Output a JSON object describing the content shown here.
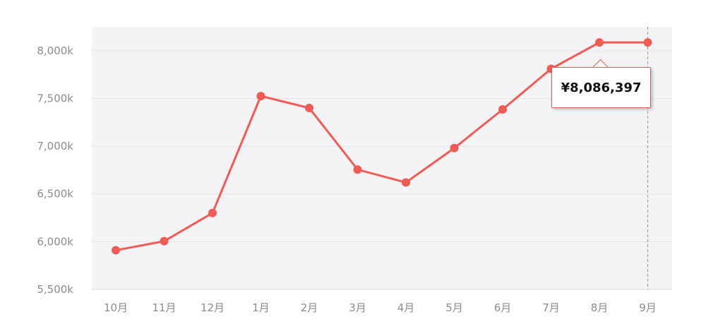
{
  "chart_data": {
    "type": "line",
    "categories": [
      "10月",
      "11月",
      "12月",
      "1月",
      "2月",
      "3月",
      "4月",
      "5月",
      "6月",
      "7月",
      "8月",
      "9月"
    ],
    "values": [
      5910,
      6005,
      6300,
      7525,
      7400,
      6755,
      6620,
      6980,
      7385,
      7810,
      8086,
      8086
    ],
    "y_ticks": [
      "5,500k",
      "6,000k",
      "6,500k",
      "7,000k",
      "7,500k",
      "8,000k"
    ],
    "y_tick_values": [
      5500,
      6000,
      6500,
      7000,
      7500,
      8000
    ],
    "ylim": [
      5500,
      8250
    ],
    "grid": true,
    "line_color": "#f25a54",
    "plot_bg": "#f4f4f6",
    "tooltip": {
      "category": "8月",
      "text": "¥8,086,397"
    },
    "crosshair_category": "9月"
  }
}
